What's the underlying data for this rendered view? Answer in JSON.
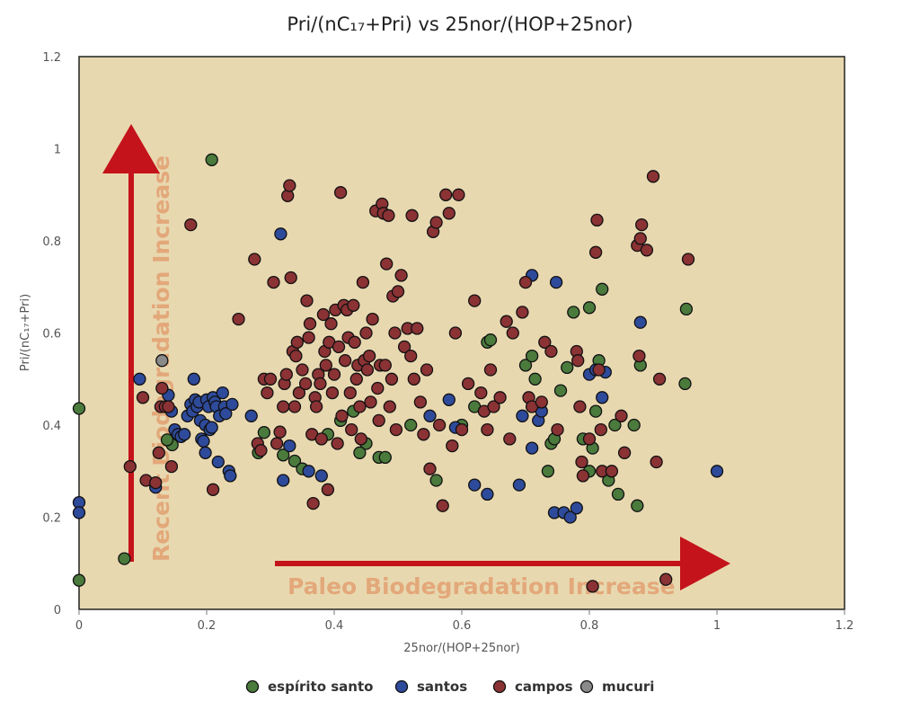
{
  "chart_data": {
    "type": "scatter",
    "title": "Pri/(nC₁₇+Pri) vs 25nor/(HOP+25nor)",
    "xlabel": "25nor/(HOP+25nor)",
    "ylabel": "Pri/(nC₁₇+Pri)",
    "xlim": [
      0,
      1.2
    ],
    "ylim": [
      0,
      1.2
    ],
    "xticks": [
      "0",
      "0.2",
      "0.4",
      "0.6",
      "0.8",
      "1",
      "1.2"
    ],
    "yticks": [
      "0",
      "0.2",
      "0.4",
      "0.6",
      "0.8",
      "1",
      "1.2"
    ],
    "grid": false,
    "background_color": "#e8d8b0",
    "legend_position": "bottom",
    "annotations": [
      {
        "text": "Recent Biodegradation Increase",
        "direction": "vertical"
      },
      {
        "text": "Paleo Biodegradation Increase",
        "direction": "horizontal"
      }
    ],
    "series": [
      {
        "name": "espírito santo",
        "color": "#4a7a3c",
        "points": [
          [
            0,
            0.436
          ],
          [
            0,
            0.063
          ],
          [
            0.071,
            0.11
          ],
          [
            0.208,
            0.976
          ],
          [
            0.146,
            0.357
          ],
          [
            0.138,
            0.368
          ],
          [
            0.29,
            0.384
          ],
          [
            0.281,
            0.34
          ],
          [
            0.32,
            0.335
          ],
          [
            0.338,
            0.322
          ],
          [
            0.35,
            0.305
          ],
          [
            0.39,
            0.38
          ],
          [
            0.41,
            0.41
          ],
          [
            0.43,
            0.43
          ],
          [
            0.45,
            0.36
          ],
          [
            0.47,
            0.33
          ],
          [
            0.48,
            0.33
          ],
          [
            0.44,
            0.34
          ],
          [
            0.52,
            0.4
          ],
          [
            0.56,
            0.28
          ],
          [
            0.6,
            0.4
          ],
          [
            0.62,
            0.44
          ],
          [
            0.64,
            0.58
          ],
          [
            0.645,
            0.585
          ],
          [
            0.7,
            0.53
          ],
          [
            0.71,
            0.55
          ],
          [
            0.715,
            0.5
          ],
          [
            0.74,
            0.36
          ],
          [
            0.745,
            0.37
          ],
          [
            0.755,
            0.475
          ],
          [
            0.765,
            0.525
          ],
          [
            0.735,
            0.3
          ],
          [
            0.775,
            0.645
          ],
          [
            0.79,
            0.37
          ],
          [
            0.8,
            0.655
          ],
          [
            0.81,
            0.43
          ],
          [
            0.815,
            0.54
          ],
          [
            0.82,
            0.695
          ],
          [
            0.8,
            0.3
          ],
          [
            0.805,
            0.35
          ],
          [
            0.83,
            0.28
          ],
          [
            0.84,
            0.4
          ],
          [
            0.845,
            0.25
          ],
          [
            0.87,
            0.4
          ],
          [
            0.875,
            0.225
          ],
          [
            0.88,
            0.53
          ],
          [
            0.95,
            0.49
          ],
          [
            0.952,
            0.652
          ]
        ]
      },
      {
        "name": "santos",
        "color": "#2e4a9a",
        "points": [
          [
            0,
            0.232
          ],
          [
            0,
            0.21
          ],
          [
            0.095,
            0.5
          ],
          [
            0.12,
            0.265
          ],
          [
            0.14,
            0.465
          ],
          [
            0.145,
            0.43
          ],
          [
            0.15,
            0.39
          ],
          [
            0.155,
            0.38
          ],
          [
            0.16,
            0.375
          ],
          [
            0.165,
            0.38
          ],
          [
            0.17,
            0.42
          ],
          [
            0.175,
            0.445
          ],
          [
            0.178,
            0.43
          ],
          [
            0.18,
            0.5
          ],
          [
            0.182,
            0.455
          ],
          [
            0.185,
            0.44
          ],
          [
            0.188,
            0.45
          ],
          [
            0.19,
            0.41
          ],
          [
            0.192,
            0.37
          ],
          [
            0.195,
            0.365
          ],
          [
            0.198,
            0.4
          ],
          [
            0.2,
            0.455
          ],
          [
            0.203,
            0.44
          ],
          [
            0.205,
            0.39
          ],
          [
            0.208,
            0.395
          ],
          [
            0.21,
            0.46
          ],
          [
            0.213,
            0.45
          ],
          [
            0.215,
            0.44
          ],
          [
            0.218,
            0.32
          ],
          [
            0.22,
            0.42
          ],
          [
            0.225,
            0.47
          ],
          [
            0.228,
            0.44
          ],
          [
            0.23,
            0.425
          ],
          [
            0.235,
            0.3
          ],
          [
            0.237,
            0.29
          ],
          [
            0.24,
            0.445
          ],
          [
            0.198,
            0.34
          ],
          [
            0.27,
            0.42
          ],
          [
            0.316,
            0.815
          ],
          [
            0.32,
            0.28
          ],
          [
            0.33,
            0.355
          ],
          [
            0.36,
            0.3
          ],
          [
            0.38,
            0.29
          ],
          [
            0.55,
            0.42
          ],
          [
            0.58,
            0.455
          ],
          [
            0.59,
            0.395
          ],
          [
            0.62,
            0.27
          ],
          [
            0.64,
            0.25
          ],
          [
            0.69,
            0.27
          ],
          [
            0.695,
            0.42
          ],
          [
            0.71,
            0.725
          ],
          [
            0.71,
            0.35
          ],
          [
            0.72,
            0.41
          ],
          [
            0.725,
            0.43
          ],
          [
            0.745,
            0.21
          ],
          [
            0.748,
            0.71
          ],
          [
            0.76,
            0.21
          ],
          [
            0.77,
            0.2
          ],
          [
            0.78,
            0.22
          ],
          [
            0.8,
            0.51
          ],
          [
            0.81,
            0.52
          ],
          [
            0.82,
            0.46
          ],
          [
            0.825,
            0.515
          ],
          [
            0.88,
            0.623
          ],
          [
            1.0,
            0.3
          ]
        ]
      },
      {
        "name": "campos",
        "color": "#8a3234",
        "points": [
          [
            0.08,
            0.31
          ],
          [
            0.1,
            0.46
          ],
          [
            0.105,
            0.28
          ],
          [
            0.12,
            0.275
          ],
          [
            0.125,
            0.34
          ],
          [
            0.128,
            0.44
          ],
          [
            0.13,
            0.48
          ],
          [
            0.135,
            0.44
          ],
          [
            0.14,
            0.44
          ],
          [
            0.145,
            0.31
          ],
          [
            0.175,
            0.835
          ],
          [
            0.21,
            0.26
          ],
          [
            0.25,
            0.63
          ],
          [
            0.275,
            0.76
          ],
          [
            0.28,
            0.36
          ],
          [
            0.285,
            0.345
          ],
          [
            0.29,
            0.5
          ],
          [
            0.295,
            0.47
          ],
          [
            0.3,
            0.5
          ],
          [
            0.305,
            0.71
          ],
          [
            0.31,
            0.36
          ],
          [
            0.315,
            0.385
          ],
          [
            0.32,
            0.44
          ],
          [
            0.322,
            0.49
          ],
          [
            0.325,
            0.51
          ],
          [
            0.327,
            0.898
          ],
          [
            0.33,
            0.92
          ],
          [
            0.332,
            0.72
          ],
          [
            0.335,
            0.56
          ],
          [
            0.338,
            0.44
          ],
          [
            0.34,
            0.55
          ],
          [
            0.342,
            0.58
          ],
          [
            0.345,
            0.47
          ],
          [
            0.35,
            0.52
          ],
          [
            0.355,
            0.49
          ],
          [
            0.357,
            0.67
          ],
          [
            0.36,
            0.59
          ],
          [
            0.362,
            0.62
          ],
          [
            0.365,
            0.38
          ],
          [
            0.367,
            0.23
          ],
          [
            0.37,
            0.46
          ],
          [
            0.372,
            0.44
          ],
          [
            0.375,
            0.51
          ],
          [
            0.378,
            0.49
          ],
          [
            0.38,
            0.37
          ],
          [
            0.383,
            0.64
          ],
          [
            0.385,
            0.56
          ],
          [
            0.387,
            0.53
          ],
          [
            0.39,
            0.26
          ],
          [
            0.392,
            0.58
          ],
          [
            0.395,
            0.62
          ],
          [
            0.397,
            0.47
          ],
          [
            0.4,
            0.51
          ],
          [
            0.402,
            0.65
          ],
          [
            0.405,
            0.36
          ],
          [
            0.407,
            0.57
          ],
          [
            0.41,
            0.905
          ],
          [
            0.412,
            0.42
          ],
          [
            0.415,
            0.66
          ],
          [
            0.417,
            0.54
          ],
          [
            0.42,
            0.65
          ],
          [
            0.422,
            0.59
          ],
          [
            0.425,
            0.47
          ],
          [
            0.427,
            0.39
          ],
          [
            0.43,
            0.66
          ],
          [
            0.432,
            0.58
          ],
          [
            0.435,
            0.5
          ],
          [
            0.437,
            0.53
          ],
          [
            0.44,
            0.44
          ],
          [
            0.442,
            0.37
          ],
          [
            0.445,
            0.71
          ],
          [
            0.447,
            0.54
          ],
          [
            0.45,
            0.6
          ],
          [
            0.452,
            0.52
          ],
          [
            0.455,
            0.55
          ],
          [
            0.457,
            0.45
          ],
          [
            0.46,
            0.63
          ],
          [
            0.465,
            0.865
          ],
          [
            0.468,
            0.48
          ],
          [
            0.47,
            0.41
          ],
          [
            0.472,
            0.53
          ],
          [
            0.475,
            0.88
          ],
          [
            0.477,
            0.86
          ],
          [
            0.48,
            0.53
          ],
          [
            0.482,
            0.75
          ],
          [
            0.485,
            0.855
          ],
          [
            0.487,
            0.44
          ],
          [
            0.49,
            0.5
          ],
          [
            0.492,
            0.68
          ],
          [
            0.495,
            0.6
          ],
          [
            0.497,
            0.39
          ],
          [
            0.5,
            0.69
          ],
          [
            0.505,
            0.725
          ],
          [
            0.51,
            0.57
          ],
          [
            0.515,
            0.61
          ],
          [
            0.52,
            0.55
          ],
          [
            0.522,
            0.855
          ],
          [
            0.525,
            0.5
          ],
          [
            0.53,
            0.61
          ],
          [
            0.535,
            0.45
          ],
          [
            0.54,
            0.38
          ],
          [
            0.545,
            0.52
          ],
          [
            0.55,
            0.305
          ],
          [
            0.555,
            0.82
          ],
          [
            0.56,
            0.84
          ],
          [
            0.565,
            0.4
          ],
          [
            0.57,
            0.225
          ],
          [
            0.575,
            0.9
          ],
          [
            0.58,
            0.86
          ],
          [
            0.585,
            0.355
          ],
          [
            0.59,
            0.6
          ],
          [
            0.595,
            0.9
          ],
          [
            0.6,
            0.39
          ],
          [
            0.61,
            0.49
          ],
          [
            0.62,
            0.67
          ],
          [
            0.63,
            0.47
          ],
          [
            0.635,
            0.43
          ],
          [
            0.64,
            0.39
          ],
          [
            0.645,
            0.52
          ],
          [
            0.65,
            0.44
          ],
          [
            0.66,
            0.46
          ],
          [
            0.67,
            0.625
          ],
          [
            0.675,
            0.37
          ],
          [
            0.68,
            0.6
          ],
          [
            0.695,
            0.645
          ],
          [
            0.7,
            0.71
          ],
          [
            0.705,
            0.46
          ],
          [
            0.71,
            0.44
          ],
          [
            0.725,
            0.45
          ],
          [
            0.73,
            0.58
          ],
          [
            0.74,
            0.56
          ],
          [
            0.75,
            0.39
          ],
          [
            0.78,
            0.56
          ],
          [
            0.782,
            0.54
          ],
          [
            0.785,
            0.44
          ],
          [
            0.788,
            0.32
          ],
          [
            0.79,
            0.29
          ],
          [
            0.8,
            0.37
          ],
          [
            0.805,
            0.05
          ],
          [
            0.81,
            0.775
          ],
          [
            0.812,
            0.845
          ],
          [
            0.815,
            0.52
          ],
          [
            0.818,
            0.39
          ],
          [
            0.82,
            0.3
          ],
          [
            0.835,
            0.3
          ],
          [
            0.85,
            0.42
          ],
          [
            0.855,
            0.34
          ],
          [
            0.875,
            0.79
          ],
          [
            0.878,
            0.55
          ],
          [
            0.88,
            0.805
          ],
          [
            0.882,
            0.835
          ],
          [
            0.89,
            0.78
          ],
          [
            0.9,
            0.94
          ],
          [
            0.905,
            0.32
          ],
          [
            0.91,
            0.5
          ],
          [
            0.92,
            0.065
          ],
          [
            0.955,
            0.76
          ]
        ]
      },
      {
        "name": "mucuri",
        "color": "#8a8a8a",
        "points": [
          [
            0.13,
            0.54
          ]
        ]
      }
    ]
  }
}
